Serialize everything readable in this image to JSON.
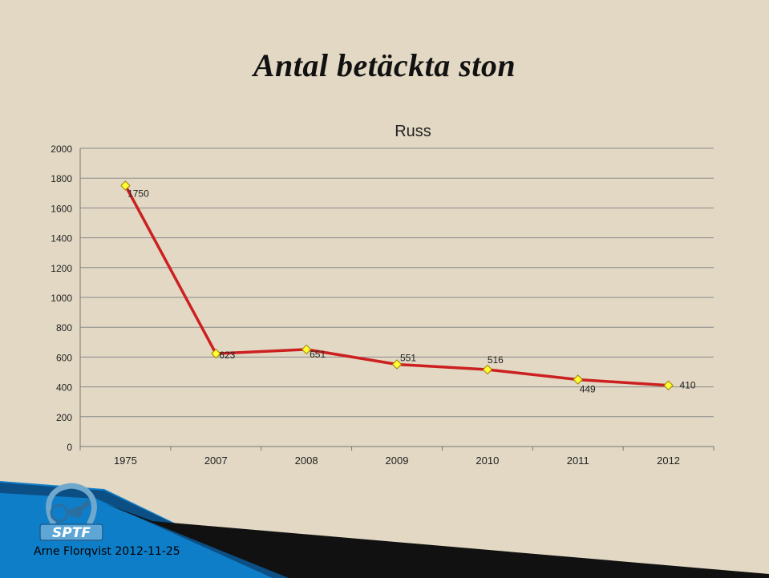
{
  "slide": {
    "title": "Antal betäckta ston",
    "footer": "Arne Florqvist 2012-11-25",
    "logo_text": "SPTF"
  },
  "colors": {
    "background": "#e2d8c4",
    "line": "#cc2020",
    "marker_fill": "#ffff33",
    "marker_stroke": "#a08000",
    "gridline": "#8a8a8a",
    "footer_band": "#0f7ec8"
  },
  "chart_data": {
    "type": "line",
    "title": "Russ",
    "xlabel": "",
    "ylabel": "",
    "categories": [
      "1975",
      "2007",
      "2008",
      "2009",
      "2010",
      "2011",
      "2012"
    ],
    "series": [
      {
        "values": [
          1750,
          623,
          651,
          551,
          516,
          449,
          410
        ]
      }
    ],
    "data_labels": [
      "1750",
      "623",
      "651",
      "551",
      "516",
      "449",
      "410"
    ],
    "ylim": [
      0,
      2000
    ],
    "y_ticks": [
      0,
      200,
      400,
      600,
      800,
      1000,
      1200,
      1400,
      1600,
      1800,
      2000
    ],
    "grid": true,
    "legend": "none"
  }
}
